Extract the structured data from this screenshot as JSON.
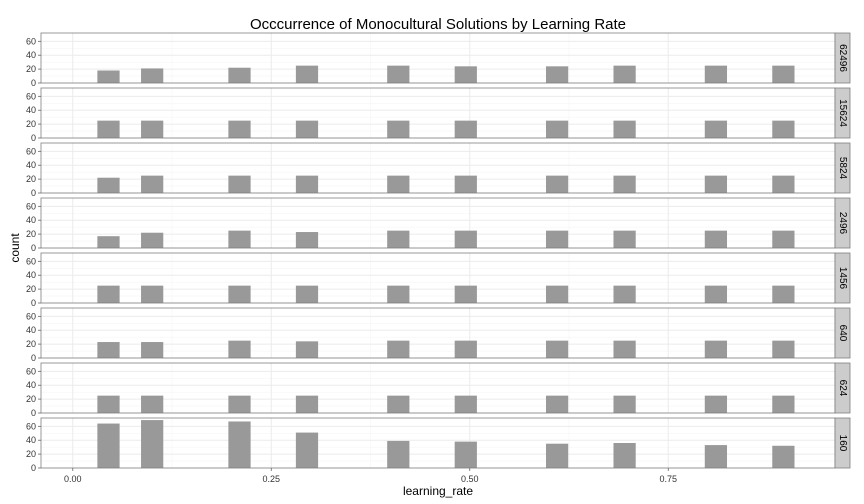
{
  "chart_data": {
    "type": "bar",
    "title": "Occcurrence of Monocultural Solutions by Learning Rate",
    "xlabel": "learning_rate",
    "ylabel": "count",
    "xlim": [
      -0.04,
      0.96
    ],
    "ylim": [
      0,
      72
    ],
    "x_ticks": [
      0.0,
      0.25,
      0.5,
      0.75
    ],
    "x_tick_labels": [
      "0.00",
      "0.25",
      "0.50",
      "0.75"
    ],
    "y_ticks": [
      0,
      20,
      40,
      60
    ],
    "y_tick_labels": [
      "0",
      "20",
      "40",
      "60"
    ],
    "bar_width": 0.028,
    "grid": true,
    "facet_variable": "population",
    "x": [
      0.045,
      0.1,
      0.21,
      0.295,
      0.41,
      0.495,
      0.61,
      0.695,
      0.81,
      0.895
    ],
    "panels": [
      {
        "label": "62496",
        "values": [
          18,
          21,
          22,
          25,
          25,
          24,
          24,
          25,
          25,
          25
        ]
      },
      {
        "label": "15624",
        "values": [
          25,
          25,
          25,
          25,
          25,
          25,
          25,
          25,
          25,
          25
        ]
      },
      {
        "label": "5824",
        "values": [
          22,
          25,
          25,
          25,
          25,
          25,
          25,
          25,
          25,
          25
        ]
      },
      {
        "label": "2496",
        "values": [
          17,
          22,
          25,
          23,
          25,
          25,
          25,
          25,
          25,
          25
        ]
      },
      {
        "label": "1456",
        "values": [
          25,
          25,
          25,
          25,
          25,
          25,
          25,
          25,
          25,
          25
        ]
      },
      {
        "label": "640",
        "values": [
          23,
          23,
          25,
          24,
          25,
          25,
          25,
          25,
          25,
          25
        ]
      },
      {
        "label": "624",
        "values": [
          25,
          25,
          25,
          25,
          25,
          25,
          25,
          25,
          25,
          25
        ]
      },
      {
        "label": "160",
        "values": [
          64,
          69,
          67,
          51,
          39,
          38,
          35,
          36,
          33,
          32
        ]
      }
    ],
    "colors": {
      "bar": "#999999",
      "panel_bg": "#ffffff",
      "panel_border": "#7f7f7f",
      "grid_major": "#ebebeb",
      "grid_minor": "#f5f5f5",
      "strip_bg": "#cccccc"
    }
  }
}
